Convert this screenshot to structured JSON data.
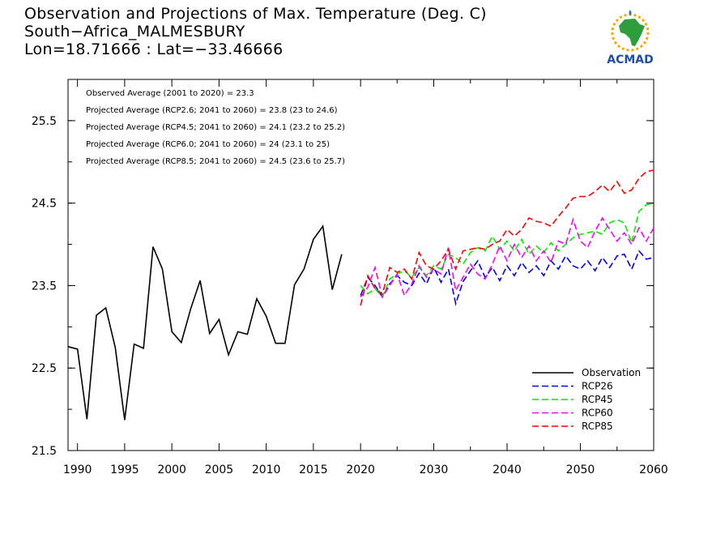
{
  "header": {
    "title_line1": "Observation and Projections of Max. Temperature (Deg. C)",
    "title_line2": "South−Africa_MALMESBURY",
    "title_line3": "Lon=18.71666 : Lat=−33.46666"
  },
  "logo": {
    "text": "ACMAD",
    "icon": "africa-map-icon"
  },
  "chart_data": {
    "type": "line",
    "xlim": [
      1989,
      2060
    ],
    "ylim": [
      21.5,
      26.0
    ],
    "x_ticks": [
      1990,
      1995,
      2000,
      2005,
      2010,
      2015,
      2020,
      2030,
      2040,
      2050,
      2060
    ],
    "y_ticks": [
      21.5,
      22.5,
      23.5,
      24.5,
      25.5
    ],
    "y_tick_labels": [
      "21.5",
      "22.5",
      "23.5",
      "24.5",
      "25.5"
    ],
    "annotations": [
      "Observed Average (2001 to 2020) = 23.3",
      "Projected Average (RCP2.6; 2041 to 2060) = 23.8 (23 to 24.6)",
      "Projected Average (RCP4.5; 2041 to 2060) = 24.1 (23.2 to 25.2)",
      "Projected Average (RCP6.0; 2041 to 2060) = 24 (23.1 to 25)",
      "Projected Average (RCP8.5; 2041 to 2060) = 24.5 (23.6 to 25.7)"
    ],
    "legend_position": "bottom-right",
    "series": [
      {
        "name": "Observation",
        "color": "#000000",
        "dashed": false,
        "x": [
          1989,
          1990,
          1991,
          1992,
          1993,
          1994,
          1995,
          1996,
          1997,
          1998,
          1999,
          2000,
          2001,
          2002,
          2003,
          2004,
          2005,
          2006,
          2007,
          2008,
          2009,
          2010,
          2011,
          2012,
          2013,
          2014,
          2015,
          2016,
          2017,
          2018,
          2019
        ],
        "y": [
          22.76,
          22.73,
          21.88,
          23.14,
          23.23,
          22.75,
          21.87,
          22.79,
          22.74,
          23.97,
          23.7,
          22.94,
          22.81,
          23.22,
          23.56,
          22.92,
          23.09,
          22.66,
          22.94,
          22.91,
          23.34,
          23.13,
          22.8,
          22.8,
          23.51,
          23.7,
          24.06,
          24.22,
          23.45,
          23.88,
          null
        ]
      },
      {
        "name": "RCP26",
        "color": "#0000ff",
        "dashed": true,
        "x": [
          2020,
          2021,
          2022,
          2023,
          2024,
          2025,
          2026,
          2027,
          2028,
          2029,
          2030,
          2031,
          2032,
          2033,
          2034,
          2035,
          2036,
          2037,
          2038,
          2039,
          2040,
          2041,
          2042,
          2043,
          2044,
          2045,
          2046,
          2047,
          2048,
          2049,
          2050,
          2051,
          2052,
          2053,
          2054,
          2055,
          2056,
          2057,
          2058,
          2059,
          2060
        ],
        "y": [
          23.38,
          23.6,
          23.5,
          23.36,
          23.52,
          23.62,
          23.54,
          23.5,
          23.65,
          23.52,
          23.72,
          23.54,
          23.7,
          23.28,
          23.55,
          23.68,
          23.8,
          23.6,
          23.72,
          23.56,
          23.74,
          23.62,
          23.78,
          23.66,
          23.74,
          23.62,
          23.8,
          23.7,
          23.86,
          23.74,
          23.7,
          23.8,
          23.68,
          23.84,
          23.72,
          23.86,
          23.88,
          23.7,
          23.92,
          23.82,
          23.84
        ]
      },
      {
        "name": "RCP45",
        "color": "#00ee00",
        "dashed": true,
        "x": [
          2020,
          2021,
          2022,
          2023,
          2024,
          2025,
          2026,
          2027,
          2028,
          2029,
          2030,
          2031,
          2032,
          2033,
          2034,
          2035,
          2036,
          2037,
          2038,
          2039,
          2040,
          2041,
          2042,
          2043,
          2044,
          2045,
          2046,
          2047,
          2048,
          2049,
          2050,
          2051,
          2052,
          2053,
          2054,
          2055,
          2056,
          2057,
          2058,
          2059,
          2060
        ],
        "y": [
          23.5,
          23.4,
          23.46,
          23.36,
          23.58,
          23.64,
          23.68,
          23.6,
          23.72,
          23.62,
          23.74,
          23.7,
          23.88,
          23.84,
          23.76,
          23.9,
          23.96,
          23.92,
          24.1,
          23.94,
          24.04,
          23.92,
          24.06,
          23.88,
          23.98,
          23.9,
          24.02,
          23.92,
          24.0,
          24.08,
          24.12,
          24.14,
          24.16,
          24.12,
          24.26,
          24.3,
          24.26,
          24.02,
          24.4,
          24.48,
          24.5
        ]
      },
      {
        "name": "RCP60",
        "color": "#ff00ff",
        "dashed": true,
        "x": [
          2020,
          2021,
          2022,
          2023,
          2024,
          2025,
          2026,
          2027,
          2028,
          2029,
          2030,
          2031,
          2032,
          2033,
          2034,
          2035,
          2036,
          2037,
          2038,
          2039,
          2040,
          2041,
          2042,
          2043,
          2044,
          2045,
          2046,
          2047,
          2048,
          2049,
          2050,
          2051,
          2052,
          2053,
          2054,
          2055,
          2056,
          2057,
          2058,
          2059,
          2060
        ],
        "y": [
          23.36,
          23.48,
          23.72,
          23.36,
          23.5,
          23.64,
          23.38,
          23.52,
          23.74,
          23.6,
          23.7,
          23.64,
          23.96,
          23.44,
          23.6,
          23.76,
          23.64,
          23.58,
          23.76,
          23.98,
          23.8,
          24.0,
          23.84,
          23.98,
          23.8,
          23.92,
          23.78,
          24.04,
          24.0,
          24.3,
          24.04,
          23.96,
          24.16,
          24.32,
          24.18,
          24.04,
          24.14,
          24.0,
          24.2,
          24.04,
          24.2
        ]
      },
      {
        "name": "RCP85",
        "color": "#ff0000",
        "dashed": true,
        "x": [
          2020,
          2021,
          2022,
          2023,
          2024,
          2025,
          2026,
          2027,
          2028,
          2029,
          2030,
          2031,
          2032,
          2033,
          2034,
          2035,
          2036,
          2037,
          2038,
          2039,
          2040,
          2041,
          2042,
          2043,
          2044,
          2045,
          2046,
          2047,
          2048,
          2049,
          2050,
          2051,
          2052,
          2053,
          2054,
          2055,
          2056,
          2057,
          2058,
          2059,
          2060
        ],
        "y": [
          23.26,
          23.62,
          23.46,
          23.4,
          23.72,
          23.66,
          23.7,
          23.58,
          23.9,
          23.74,
          23.7,
          23.8,
          23.94,
          23.7,
          23.92,
          23.94,
          23.96,
          23.94,
          24.0,
          24.04,
          24.18,
          24.1,
          24.18,
          24.32,
          24.28,
          24.26,
          24.22,
          24.34,
          24.44,
          24.56,
          24.58,
          24.58,
          24.64,
          24.72,
          24.64,
          24.76,
          24.62,
          24.66,
          24.8,
          24.88,
          24.9
        ]
      }
    ]
  }
}
